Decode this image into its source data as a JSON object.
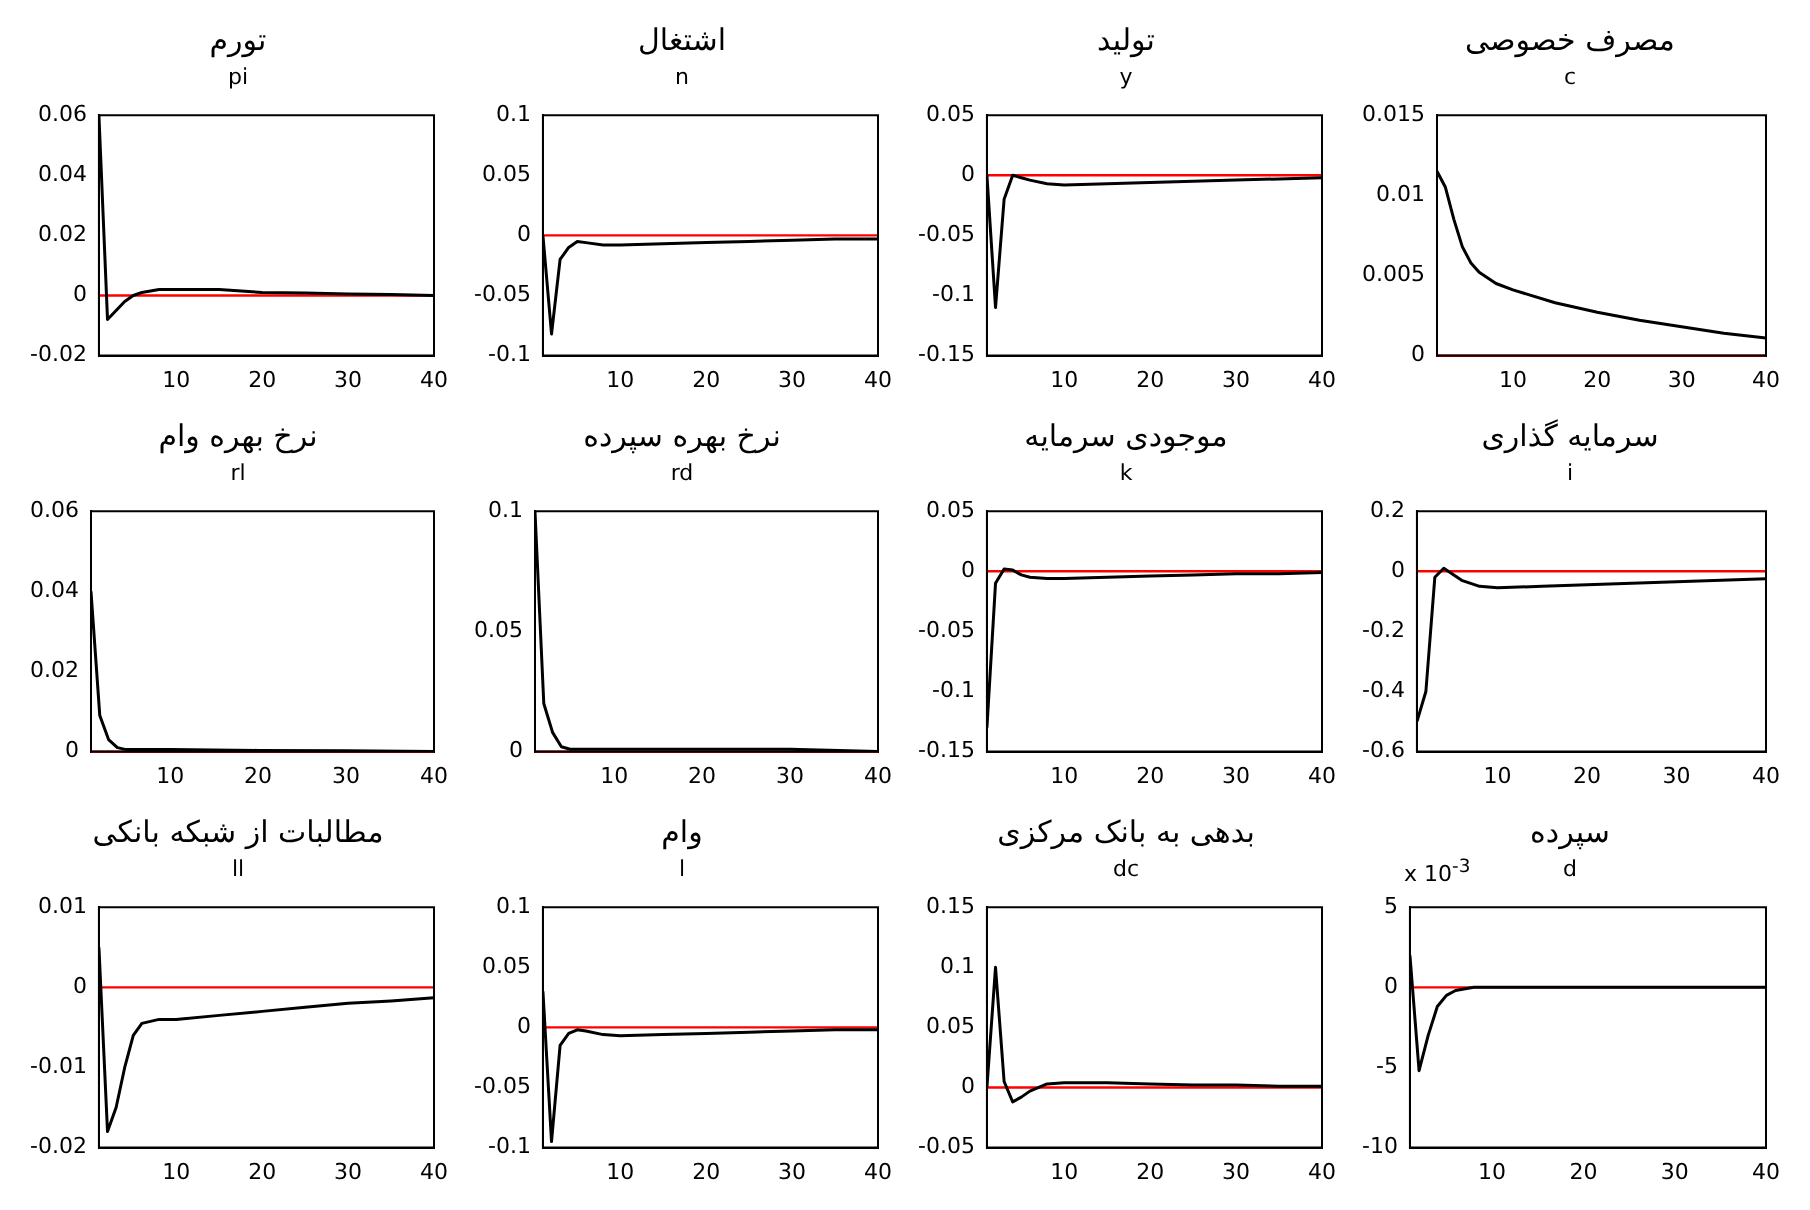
{
  "chart_data": [
    {
      "type": "line",
      "title": "تورم",
      "subtitle": "pi",
      "x": [
        1,
        2,
        3,
        4,
        5,
        6,
        8,
        10,
        15,
        20,
        25,
        30,
        35,
        40
      ],
      "color": "#000000",
      "values": [
        0.06,
        -0.008,
        -0.005,
        -0.002,
        0,
        0.001,
        0.002,
        0.002,
        0.002,
        0.001,
        0.0008,
        0.0005,
        0.0003,
        0
      ],
      "xlim": [
        1,
        40
      ],
      "xticks": [
        10,
        20,
        30,
        40
      ],
      "ylim": [
        -0.02,
        0.06
      ],
      "yticks": [
        -0.02,
        0,
        0.02,
        0.04,
        0.06
      ],
      "ref_lines": [
        {
          "axis": "y",
          "value": 0,
          "color": "#ff0000"
        }
      ],
      "grid": false,
      "marker": "none",
      "line_style": "solid"
    },
    {
      "type": "line",
      "title": "اشتغال",
      "subtitle": "n",
      "x": [
        1,
        2,
        3,
        4,
        5,
        6,
        8,
        10,
        15,
        20,
        25,
        30,
        35,
        40
      ],
      "color": "#000000",
      "values": [
        0,
        -0.082,
        -0.02,
        -0.01,
        -0.005,
        -0.006,
        -0.008,
        -0.008,
        -0.007,
        -0.006,
        -0.005,
        -0.004,
        -0.003,
        -0.003
      ],
      "xlim": [
        1,
        40
      ],
      "xticks": [
        10,
        20,
        30,
        40
      ],
      "ylim": [
        -0.1,
        0.1
      ],
      "yticks": [
        -0.1,
        -0.05,
        0,
        0.05,
        0.1
      ],
      "ref_lines": [
        {
          "axis": "y",
          "value": 0,
          "color": "#ff0000"
        }
      ],
      "grid": false,
      "marker": "none",
      "line_style": "solid"
    },
    {
      "type": "line",
      "title": "تولید",
      "subtitle": "y",
      "x": [
        1,
        2,
        3,
        4,
        5,
        6,
        8,
        10,
        15,
        20,
        25,
        30,
        35,
        40
      ],
      "color": "#000000",
      "values": [
        0,
        -0.11,
        -0.02,
        0,
        -0.002,
        -0.004,
        -0.007,
        -0.008,
        -0.007,
        -0.006,
        -0.005,
        -0.004,
        -0.003,
        -0.002
      ],
      "xlim": [
        1,
        40
      ],
      "xticks": [
        10,
        20,
        30,
        40
      ],
      "ylim": [
        -0.15,
        0.05
      ],
      "yticks": [
        -0.15,
        -0.1,
        -0.05,
        0,
        0.05
      ],
      "ref_lines": [
        {
          "axis": "y",
          "value": 0,
          "color": "#ff0000"
        }
      ],
      "grid": false,
      "marker": "none",
      "line_style": "solid"
    },
    {
      "type": "line",
      "title": "مصرف خصوصی",
      "subtitle": "c",
      "x": [
        1,
        2,
        3,
        4,
        5,
        6,
        8,
        10,
        15,
        20,
        25,
        30,
        35,
        40
      ],
      "color": "#000000",
      "values": [
        0.0115,
        0.0105,
        0.0085,
        0.0068,
        0.0058,
        0.0052,
        0.0045,
        0.0041,
        0.0033,
        0.0027,
        0.0022,
        0.0018,
        0.0014,
        0.0011
      ],
      "xlim": [
        1,
        40
      ],
      "xticks": [
        10,
        20,
        30,
        40
      ],
      "ylim": [
        0,
        0.015
      ],
      "yticks": [
        0,
        0.005,
        0.01,
        0.015
      ],
      "ref_lines": [
        {
          "axis": "y",
          "value": 0,
          "color": "#ff0000"
        }
      ],
      "grid": false,
      "marker": "none",
      "line_style": "solid"
    },
    {
      "type": "line",
      "title": "نرخ بهره وام",
      "subtitle": "rl",
      "x": [
        1,
        2,
        3,
        4,
        5,
        8,
        10,
        20,
        30,
        40
      ],
      "color": "#000000",
      "values": [
        0.04,
        0.009,
        0.003,
        0.001,
        0.0005,
        0.0005,
        0.0005,
        0.0003,
        0.0002,
        0
      ],
      "xlim": [
        1,
        40
      ],
      "xticks": [
        10,
        20,
        30,
        40
      ],
      "ylim": [
        0,
        0.06
      ],
      "yticks": [
        0,
        0.02,
        0.04,
        0.06
      ],
      "ref_lines": [
        {
          "axis": "y",
          "value": 0,
          "color": "#ff0000"
        }
      ],
      "grid": false,
      "marker": "none",
      "line_style": "solid"
    },
    {
      "type": "line",
      "title": "نرخ بهره سپرده",
      "subtitle": "rd",
      "x": [
        1,
        2,
        3,
        4,
        5,
        10,
        20,
        30,
        40
      ],
      "color": "#000000",
      "values": [
        0.1,
        0.02,
        0.008,
        0.002,
        0.001,
        0.001,
        0.001,
        0.001,
        0
      ],
      "xlim": [
        1,
        40
      ],
      "xticks": [
        10,
        20,
        30,
        40
      ],
      "ylim": [
        0,
        0.1
      ],
      "yticks": [
        0,
        0.05,
        0.1
      ],
      "ref_lines": [
        {
          "axis": "y",
          "value": 0,
          "color": "#ff0000"
        }
      ],
      "grid": false,
      "marker": "none",
      "line_style": "solid"
    },
    {
      "type": "line",
      "title": "موجودی سرمایه",
      "subtitle": "k",
      "x": [
        1,
        2,
        3,
        4,
        5,
        6,
        8,
        10,
        15,
        20,
        25,
        30,
        35,
        40
      ],
      "color": "#000000",
      "values": [
        -0.13,
        -0.01,
        0.002,
        0.001,
        -0.003,
        -0.005,
        -0.006,
        -0.006,
        -0.005,
        -0.004,
        -0.003,
        -0.002,
        -0.002,
        -0.001
      ],
      "xlim": [
        1,
        40
      ],
      "xticks": [
        10,
        20,
        30,
        40
      ],
      "ylim": [
        -0.15,
        0.05
      ],
      "yticks": [
        -0.15,
        -0.1,
        -0.05,
        0,
        0.05
      ],
      "ref_lines": [
        {
          "axis": "y",
          "value": 0,
          "color": "#ff0000"
        }
      ],
      "grid": false,
      "marker": "none",
      "line_style": "solid"
    },
    {
      "type": "line",
      "title": "سرمایه گذاری",
      "subtitle": "i",
      "x": [
        1,
        2,
        3,
        4,
        5,
        6,
        8,
        10,
        15,
        20,
        25,
        30,
        35,
        40
      ],
      "color": "#000000",
      "values": [
        -0.5,
        -0.4,
        -0.02,
        0.01,
        -0.01,
        -0.03,
        -0.05,
        -0.055,
        -0.05,
        -0.045,
        -0.04,
        -0.035,
        -0.03,
        -0.025
      ],
      "xlim": [
        1,
        40
      ],
      "xticks": [
        10,
        20,
        30,
        40
      ],
      "ylim": [
        -0.6,
        0.2
      ],
      "yticks": [
        -0.6,
        -0.4,
        -0.2,
        0,
        0.2
      ],
      "ref_lines": [
        {
          "axis": "y",
          "value": 0,
          "color": "#ff0000"
        }
      ],
      "grid": false,
      "marker": "none",
      "line_style": "solid"
    },
    {
      "type": "line",
      "title": "مطالبات از شبکه بانکی",
      "subtitle": "ll",
      "x": [
        1,
        2,
        3,
        4,
        5,
        6,
        8,
        10,
        15,
        20,
        25,
        30,
        35,
        40
      ],
      "color": "#000000",
      "values": [
        0.005,
        -0.018,
        -0.015,
        -0.01,
        -0.006,
        -0.0045,
        -0.004,
        -0.004,
        -0.0035,
        -0.003,
        -0.0025,
        -0.002,
        -0.0017,
        -0.0013
      ],
      "xlim": [
        1,
        40
      ],
      "xticks": [
        10,
        20,
        30,
        40
      ],
      "ylim": [
        -0.02,
        0.01
      ],
      "yticks": [
        -0.02,
        -0.01,
        0,
        0.01
      ],
      "ref_lines": [
        {
          "axis": "y",
          "value": 0,
          "color": "#ff0000"
        }
      ],
      "grid": false,
      "marker": "none",
      "line_style": "solid"
    },
    {
      "type": "line",
      "title": "وام",
      "subtitle": "l",
      "x": [
        1,
        2,
        3,
        4,
        5,
        6,
        8,
        10,
        15,
        20,
        25,
        30,
        35,
        40
      ],
      "color": "#000000",
      "values": [
        0.03,
        -0.095,
        -0.015,
        -0.005,
        -0.002,
        -0.003,
        -0.006,
        -0.007,
        -0.006,
        -0.005,
        -0.004,
        -0.003,
        -0.002,
        -0.002
      ],
      "xlim": [
        1,
        40
      ],
      "xticks": [
        10,
        20,
        30,
        40
      ],
      "ylim": [
        -0.1,
        0.1
      ],
      "yticks": [
        -0.1,
        -0.05,
        0,
        0.05,
        0.1
      ],
      "ref_lines": [
        {
          "axis": "y",
          "value": 0,
          "color": "#ff0000"
        }
      ],
      "grid": false,
      "marker": "none",
      "line_style": "solid"
    },
    {
      "type": "line",
      "title": "بدهی به بانک مرکزی",
      "subtitle": "dc",
      "x": [
        1,
        2,
        3,
        4,
        5,
        6,
        8,
        10,
        15,
        20,
        25,
        30,
        35,
        40
      ],
      "color": "#000000",
      "values": [
        0,
        0.1,
        0.005,
        -0.012,
        -0.008,
        -0.003,
        0.003,
        0.004,
        0.004,
        0.003,
        0.002,
        0.002,
        0.001,
        0.001
      ],
      "xlim": [
        1,
        40
      ],
      "xticks": [
        10,
        20,
        30,
        40
      ],
      "ylim": [
        -0.05,
        0.15
      ],
      "yticks": [
        -0.05,
        0,
        0.05,
        0.1,
        0.15
      ],
      "ref_lines": [
        {
          "axis": "y",
          "value": 0,
          "color": "#ff0000"
        }
      ],
      "grid": false,
      "marker": "none",
      "line_style": "solid"
    },
    {
      "type": "line",
      "title": "سپرده",
      "subtitle": "d",
      "annotations": [
        "x 10$^{-3}$"
      ],
      "x": [
        1,
        2,
        3,
        4,
        5,
        6,
        8,
        10,
        20,
        40
      ],
      "color": "#000000",
      "values": [
        2,
        -5.2,
        -3,
        -1.2,
        -0.5,
        -0.2,
        0,
        0,
        0,
        0
      ],
      "xlim": [
        1,
        40
      ],
      "xticks": [
        10,
        20,
        30,
        40
      ],
      "ylim": [
        -10,
        5
      ],
      "yticks": [
        -10,
        -5,
        0,
        5
      ],
      "ref_lines": [
        {
          "axis": "y",
          "value": 0,
          "color": "#ff0000"
        }
      ],
      "grid": false,
      "marker": "none",
      "line_style": "solid"
    }
  ]
}
